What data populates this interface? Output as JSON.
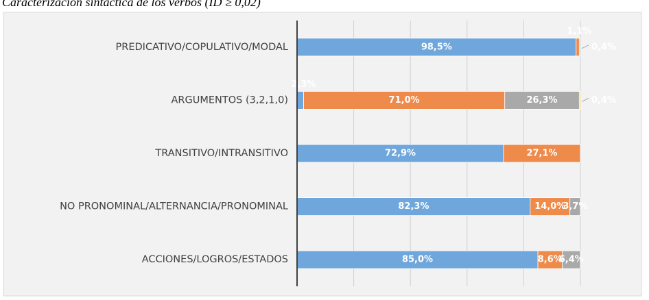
{
  "chart_data": {
    "type": "stacked-bar-horizontal",
    "title": "Caracterización sintáctica de los verbos (ID ≥ 0,02)",
    "categories": [
      "PREDICATIVO/COPULATIVO/MODAL",
      "ARGUMENTOS (3,2,1,0)",
      "TRANSITIVO/INTRANSITIVO",
      "NO PRONOMINAL/ALTERNANCIA/PRONOMINAL",
      "ACCIONES/LOGROS/ESTADOS"
    ],
    "series": [
      {
        "color": "#6fa6dc",
        "values": [
          98.5,
          2.3,
          72.9,
          82.3,
          85.0
        ],
        "value_labels": [
          "98,5%",
          "2,3%",
          "72,9%",
          "82,3%",
          "85,0%"
        ]
      },
      {
        "color": "#ee8a4a",
        "values": [
          1.1,
          71.0,
          27.1,
          14.0,
          8.6
        ],
        "value_labels": [
          "1,1%",
          "71,0%",
          "27,1%",
          "14,0%",
          "8,6%"
        ]
      },
      {
        "color": "#a9a9a9",
        "values": [
          0.4,
          26.3,
          null,
          3.7,
          6.4
        ],
        "value_labels": [
          "0,4%",
          "26,3%",
          null,
          "3,7%",
          "6,4%"
        ]
      },
      {
        "color": "#ffc000",
        "values": [
          null,
          0.4,
          null,
          null,
          null
        ],
        "value_labels": [
          null,
          "0,4%",
          null,
          null,
          null
        ]
      }
    ],
    "xlim": [
      0,
      100
    ],
    "xticks": [
      0,
      20,
      40,
      60,
      80,
      100
    ],
    "grid": true
  }
}
